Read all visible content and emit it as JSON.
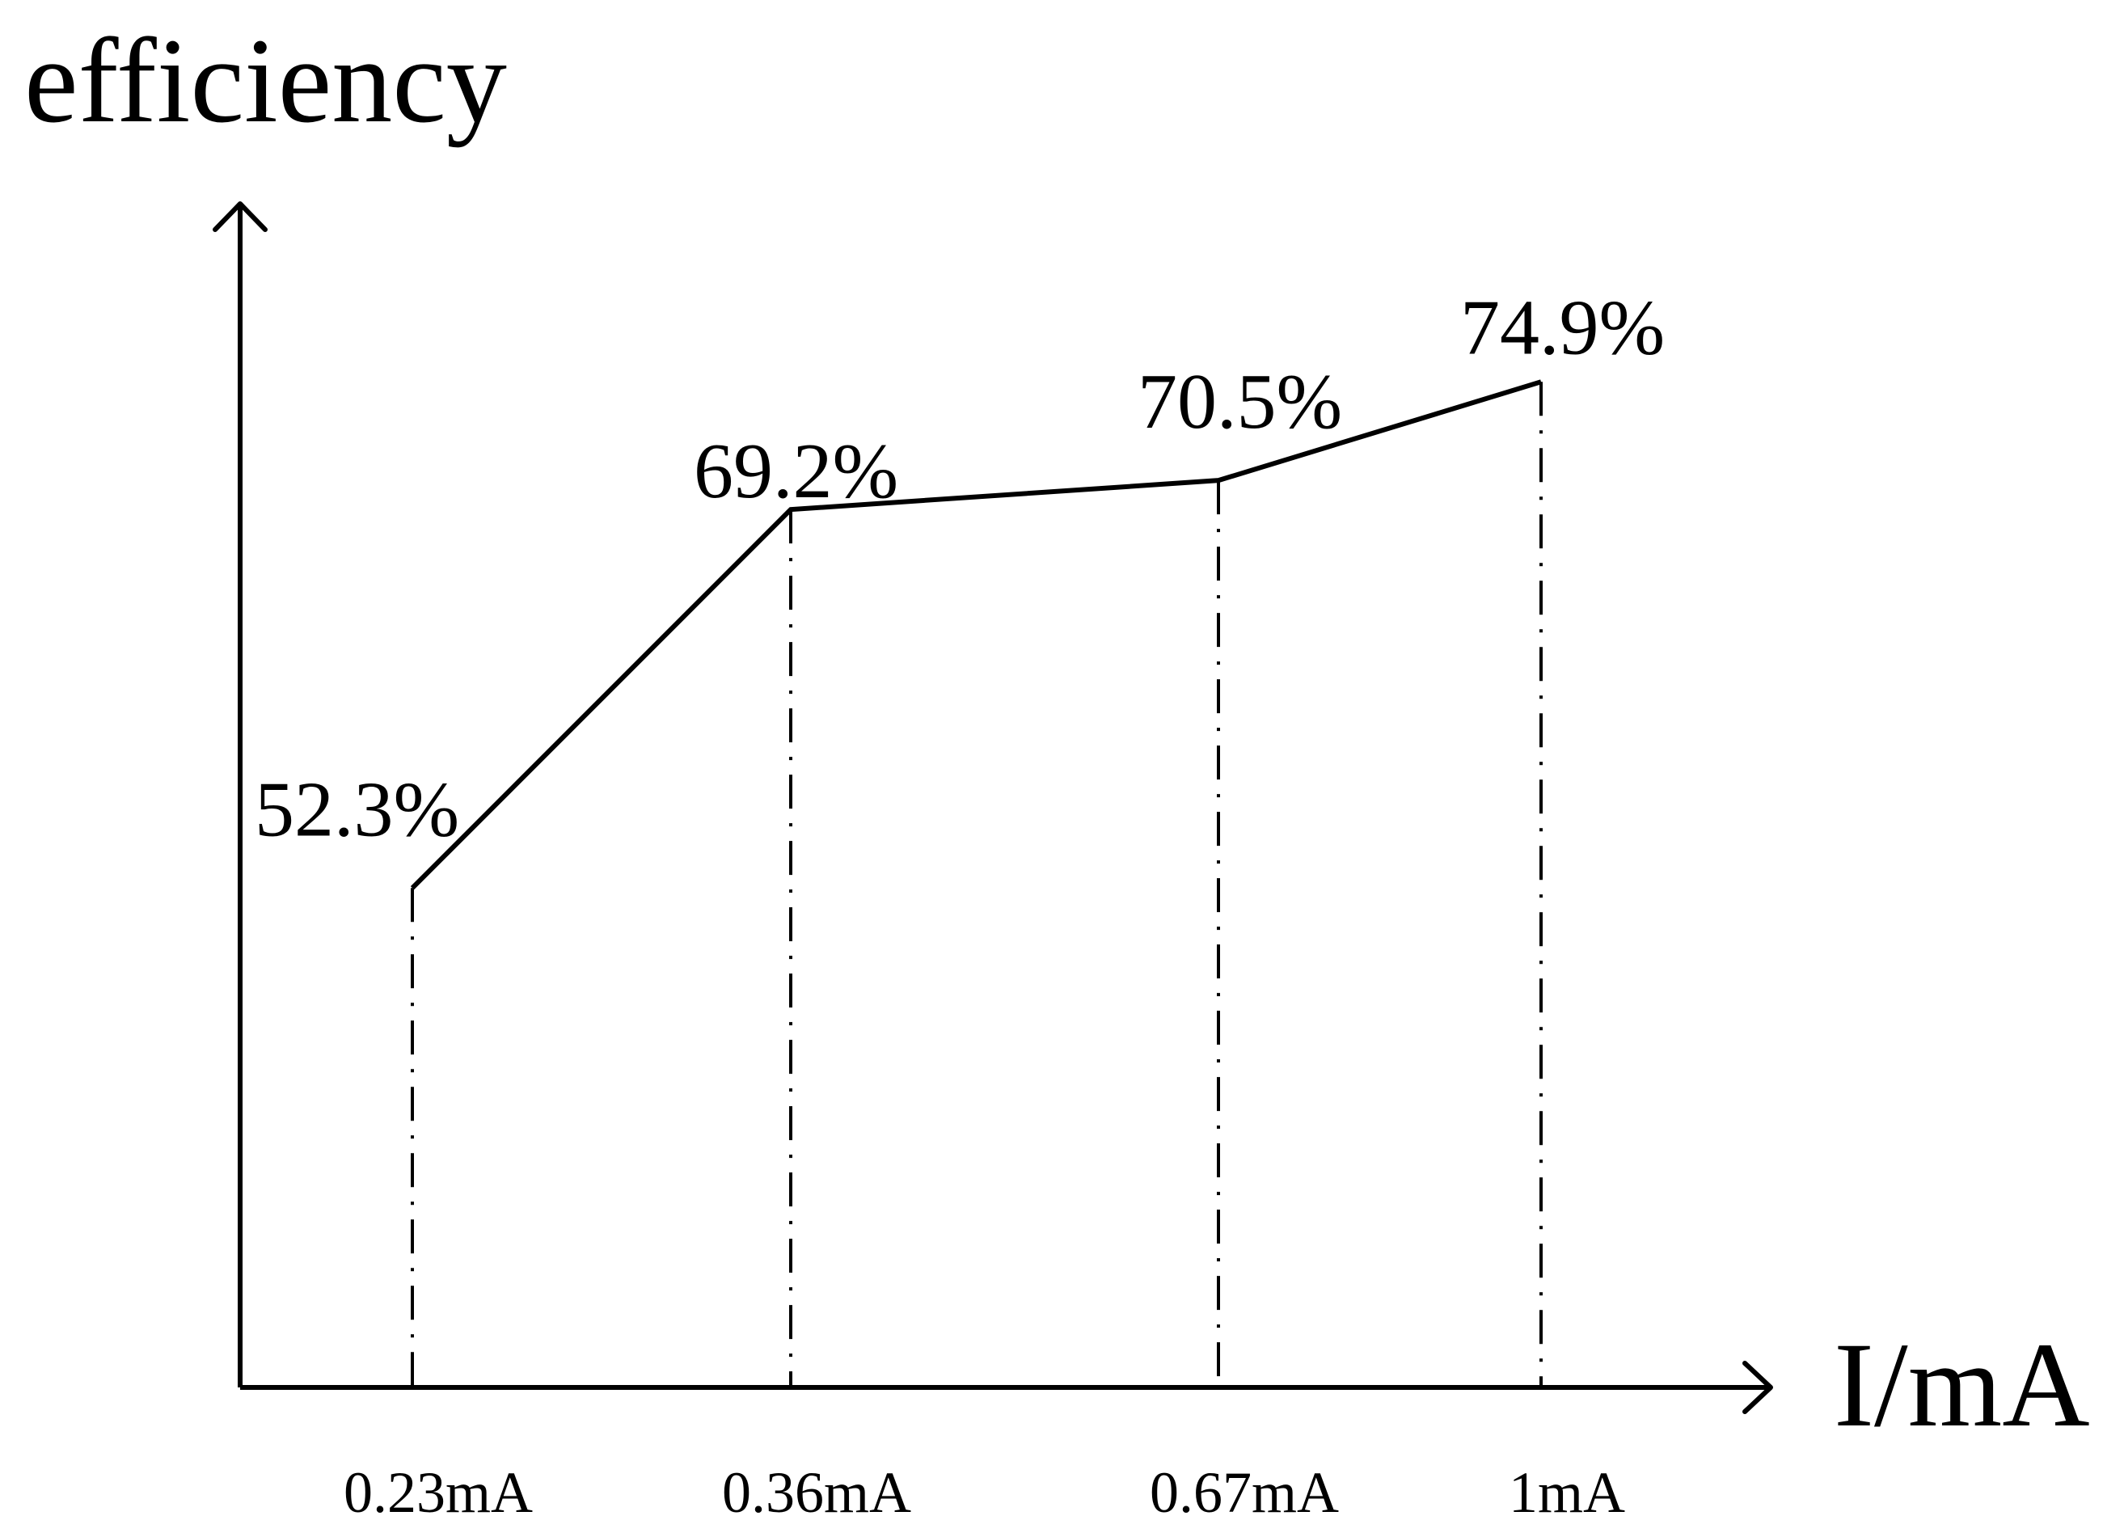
{
  "chart_data": {
    "type": "line",
    "title": "",
    "xlabel": "I/mA",
    "ylabel": "efficiency",
    "categories": [
      "0.23mA",
      "0.36mA",
      "0.67mA",
      "1mA"
    ],
    "x": [
      0.23,
      0.36,
      0.67,
      1
    ],
    "values": [
      52.3,
      69.2,
      70.5,
      74.9
    ],
    "data_labels": [
      "52.3%",
      "69.2%",
      "70.5%",
      "74.9%"
    ],
    "ylim": [
      30,
      100
    ],
    "grid": false,
    "legend": "none"
  }
}
